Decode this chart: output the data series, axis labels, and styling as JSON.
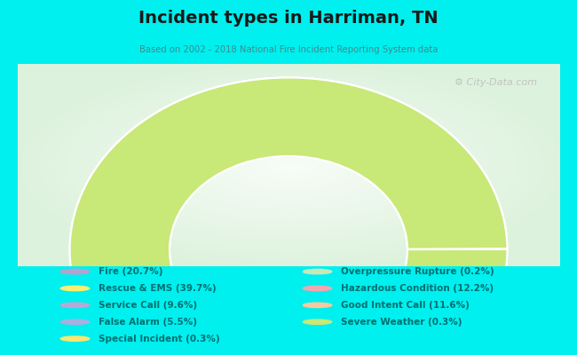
{
  "title": "Incident types in Harriman, TN",
  "subtitle": "Based on 2002 - 2018 National Fire Incident Reporting System data",
  "bg_color": "#00EFEF",
  "watermark": "⚙ City-Data.com",
  "segments_order": [
    {
      "label": "Special Incident (0.3%)",
      "value": 0.3,
      "color": "#f8e870"
    },
    {
      "label": "Service Call (9.6%)",
      "value": 9.6,
      "color": "#b8a8d8"
    },
    {
      "label": "Fire (20.7%)",
      "value": 20.7,
      "color": "#b8a0d0"
    },
    {
      "label": "Rescue & EMS (39.7%)",
      "value": 39.7,
      "color": "#f8f070"
    },
    {
      "label": "Overpressure Rupture (0.2%)",
      "value": 0.2,
      "color": "#c8e8b8"
    },
    {
      "label": "Hazardous Condition (12.2%)",
      "value": 12.2,
      "color": "#f0a8b0"
    },
    {
      "label": "Good Intent Call (11.6%)",
      "value": 11.6,
      "color": "#f8c8a0"
    },
    {
      "label": "False Alarm (5.5%)",
      "value": 5.5,
      "color": "#a8b0e0"
    },
    {
      "label": "Severe Weather (0.3%)",
      "value": 0.3,
      "color": "#c8e878"
    }
  ],
  "legend_left": [
    {
      "label": "Fire (20.7%)",
      "color": "#b8a0d0"
    },
    {
      "label": "Rescue & EMS (39.7%)",
      "color": "#f8f070"
    },
    {
      "label": "Service Call (9.6%)",
      "color": "#b8a8d8"
    },
    {
      "label": "False Alarm (5.5%)",
      "color": "#a8b0e0"
    },
    {
      "label": "Special Incident (0.3%)",
      "color": "#f8e870"
    }
  ],
  "legend_right": [
    {
      "label": "Overpressure Rupture (0.2%)",
      "color": "#c8e8b8"
    },
    {
      "label": "Hazardous Condition (12.2%)",
      "color": "#f0a8b0"
    },
    {
      "label": "Good Intent Call (11.6%)",
      "color": "#f8c8a0"
    },
    {
      "label": "Severe Weather (0.3%)",
      "color": "#c8e878"
    }
  ],
  "outer_r": 1.25,
  "inner_r": 0.68,
  "chart_xlim": [
    -1.55,
    1.55
  ],
  "chart_ylim": [
    -0.12,
    1.35
  ]
}
